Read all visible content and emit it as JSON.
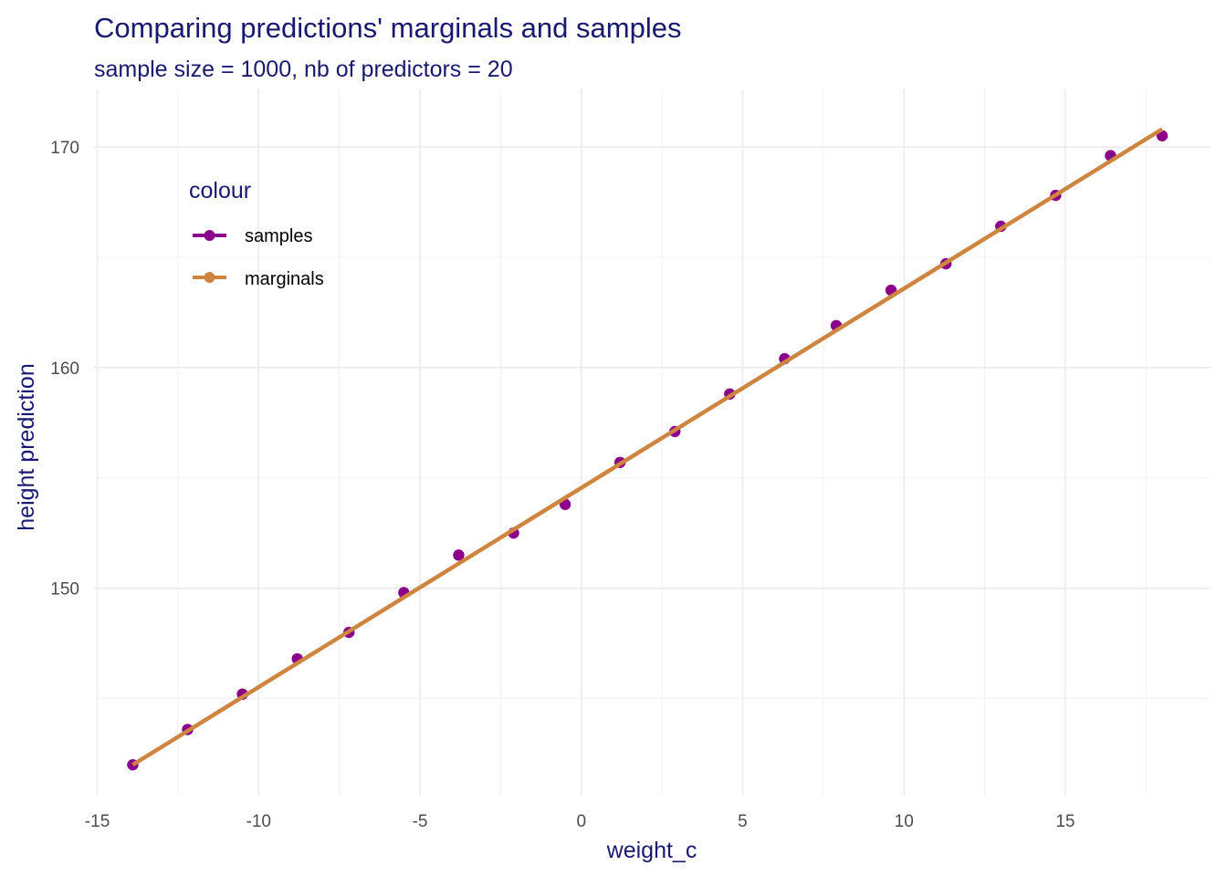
{
  "chart_data": {
    "type": "line",
    "title": "Comparing predictions' marginals and samples",
    "subtitle": "sample size = 1000, nb of predictors = 20",
    "xlabel": "weight_c",
    "ylabel": "height prediction",
    "xlim": [
      -15.1,
      19.5
    ],
    "ylim": [
      140.6,
      172.6
    ],
    "x_ticks": [
      -15,
      -10,
      -5,
      0,
      5,
      10,
      15
    ],
    "x_tick_labels": [
      "-15",
      "-10",
      "-5",
      "0",
      "5",
      "10",
      "15"
    ],
    "y_ticks": [
      150,
      160,
      170
    ],
    "y_tick_labels": [
      "150",
      "160",
      "170"
    ],
    "x_minor_ticks": [
      -12.5,
      -7.5,
      -2.5,
      2.5,
      7.5,
      12.5,
      17.5
    ],
    "y_minor_ticks": [
      145,
      155,
      165
    ],
    "grid": true,
    "legend": {
      "title": "colour",
      "position": "top-left",
      "entries": [
        {
          "label": "samples",
          "color": "#8b008b"
        },
        {
          "label": "marginals",
          "color": "#cd853f"
        }
      ]
    },
    "series": [
      {
        "name": "samples",
        "color": "#8b008b",
        "style": "points",
        "x": [
          -13.9,
          -12.2,
          -10.5,
          -8.8,
          -7.2,
          -5.5,
          -3.8,
          -2.1,
          -0.5,
          1.2,
          2.9,
          4.6,
          6.3,
          7.9,
          9.6,
          11.3,
          13.0,
          14.7,
          16.4,
          18.0
        ],
        "y": [
          142.0,
          143.6,
          145.2,
          146.8,
          148.0,
          149.8,
          151.5,
          152.5,
          153.8,
          155.7,
          157.1,
          158.8,
          160.4,
          161.9,
          163.5,
          164.7,
          166.4,
          167.8,
          169.6,
          170.5
        ]
      },
      {
        "name": "marginals",
        "color": "#cd853f",
        "style": "line",
        "x": [
          -13.9,
          18.0
        ],
        "y": [
          142.0,
          170.8
        ]
      }
    ]
  }
}
